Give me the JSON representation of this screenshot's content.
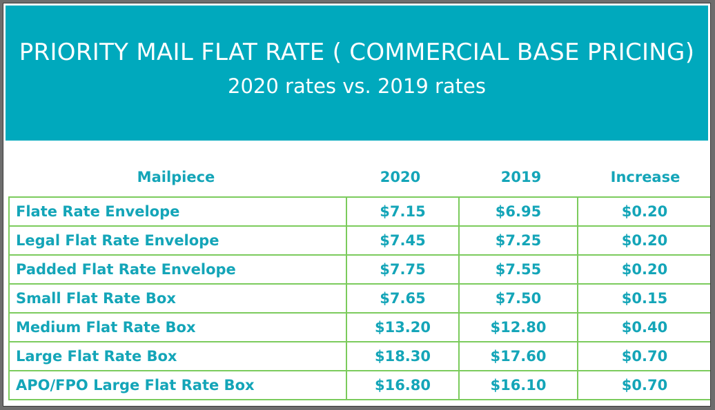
{
  "header": {
    "title": "PRIORITY MAIL FLAT RATE ( COMMERCIAL BASE PRICING)",
    "subtitle": "2020 rates vs. 2019 rates"
  },
  "colors": {
    "banner": "#00a9bd",
    "text": "#14a5b8",
    "grid": "#7bcb5c"
  },
  "chart_data": {
    "type": "table",
    "title": "PRIORITY MAIL FLAT RATE ( COMMERCIAL BASE PRICING)",
    "subtitle": "2020 rates vs. 2019 rates",
    "columns": [
      "Mailpiece",
      "2020",
      "2019",
      "Increase"
    ],
    "rows": [
      [
        "Flate Rate Envelope",
        "$7.15",
        "$6.95",
        "$0.20"
      ],
      [
        "Legal Flat Rate Envelope",
        "$7.45",
        "$7.25",
        "$0.20"
      ],
      [
        "Padded Flat Rate Envelope",
        "$7.75",
        "$7.55",
        "$0.20"
      ],
      [
        "Small Flat Rate Box",
        "$7.65",
        "$7.50",
        "$0.15"
      ],
      [
        "Medium Flat Rate Box",
        "$13.20",
        "$12.80",
        "$0.40"
      ],
      [
        "Large Flat Rate Box",
        "$18.30",
        "$17.60",
        "$0.70"
      ],
      [
        "APO/FPO Large Flat Rate Box",
        "$16.80",
        "$16.10",
        "$0.70"
      ]
    ]
  }
}
